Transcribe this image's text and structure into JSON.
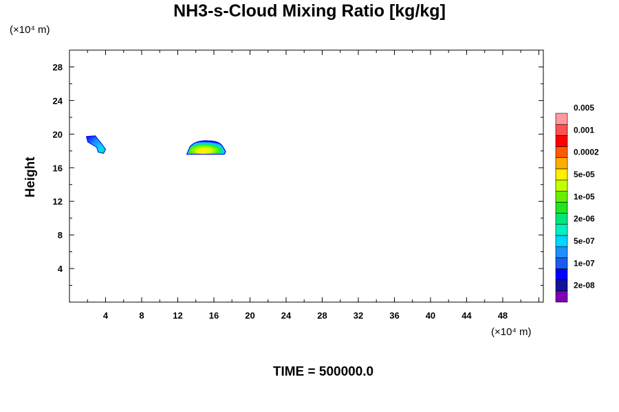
{
  "chart_data": {
    "type": "heatmap",
    "title": "NH3-s-Cloud Mixing Ratio [kg/kg]",
    "xlabel": "",
    "ylabel": "Height",
    "x_unit": "(×10⁴ m)",
    "y_unit": "(×10⁴ m)",
    "xlim": [
      0,
      52.5
    ],
    "ylim": [
      0,
      30
    ],
    "x_ticks": [
      4,
      8,
      12,
      16,
      20,
      24,
      28,
      32,
      36,
      40,
      44,
      48
    ],
    "y_ticks": [
      4,
      8,
      12,
      16,
      20,
      24,
      28
    ],
    "grid": false,
    "colorbar": {
      "placement": "right",
      "levels": [
        "2e-08",
        "1e-07",
        "5e-07",
        "2e-06",
        "1e-05",
        "5e-05",
        "0.0002",
        "0.001",
        "0.005"
      ],
      "colors": [
        "#7f00b2",
        "#12129b",
        "#0000ff",
        "#1a5cf2",
        "#1e8fff",
        "#00d7ff",
        "#00f0c0",
        "#00e678",
        "#20e620",
        "#66f000",
        "#c8ff00",
        "#fff000",
        "#ffae00",
        "#ff5a00",
        "#ff0000",
        "#ff5050",
        "#ff9aa0"
      ]
    },
    "features": [
      {
        "name": "small cloud",
        "x_range": [
          1.8,
          4.0
        ],
        "y_range": [
          17.7,
          19.8
        ],
        "max_level": "2e-06"
      },
      {
        "name": "large cloud",
        "x_range": [
          13.0,
          17.3
        ],
        "y_range": [
          17.6,
          19.2
        ],
        "max_level": "0.0002"
      }
    ],
    "time_label": "TIME = 500000.0"
  }
}
